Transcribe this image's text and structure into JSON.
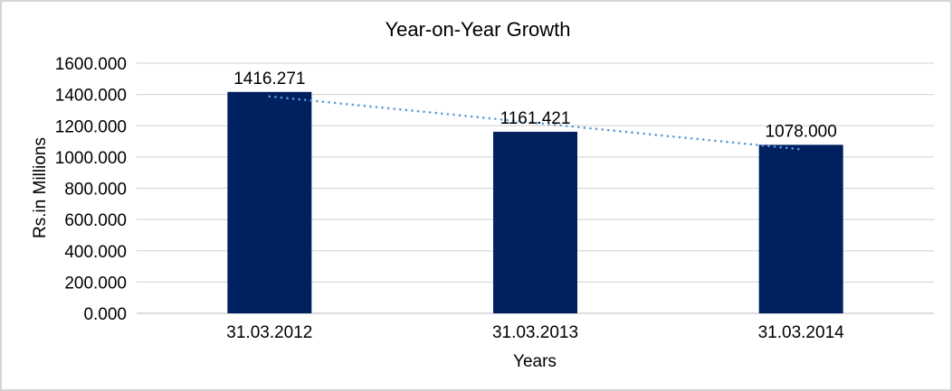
{
  "chart_data": {
    "type": "bar",
    "title": "Year-on-Year Growth",
    "ylabel": "Rs.in Millions",
    "xlabel": "Years",
    "categories": [
      "31.03.2012",
      "31.03.2013",
      "31.03.2014"
    ],
    "values": [
      1416.271,
      1161.421,
      1078.0
    ],
    "data_labels": [
      "1416.271",
      "1161.421",
      "1078.000"
    ],
    "ylim": [
      0,
      1600
    ],
    "ytick_step": 200,
    "ytick_labels": [
      "0.000",
      "200.000",
      "400.000",
      "600.000",
      "800.000",
      "1000.000",
      "1200.000",
      "1400.000",
      "1600.000"
    ],
    "grid": true,
    "legend": "none",
    "trendline": {
      "shape": "linear",
      "style": "dotted",
      "color": "#5b9bd5"
    },
    "colors": {
      "bar": "#002060",
      "gridline": "#d9d9d9",
      "axis_line": "#c6c6c6",
      "text": "#000000",
      "background": "#ffffff",
      "frame_border": "#d4d4d4"
    }
  }
}
